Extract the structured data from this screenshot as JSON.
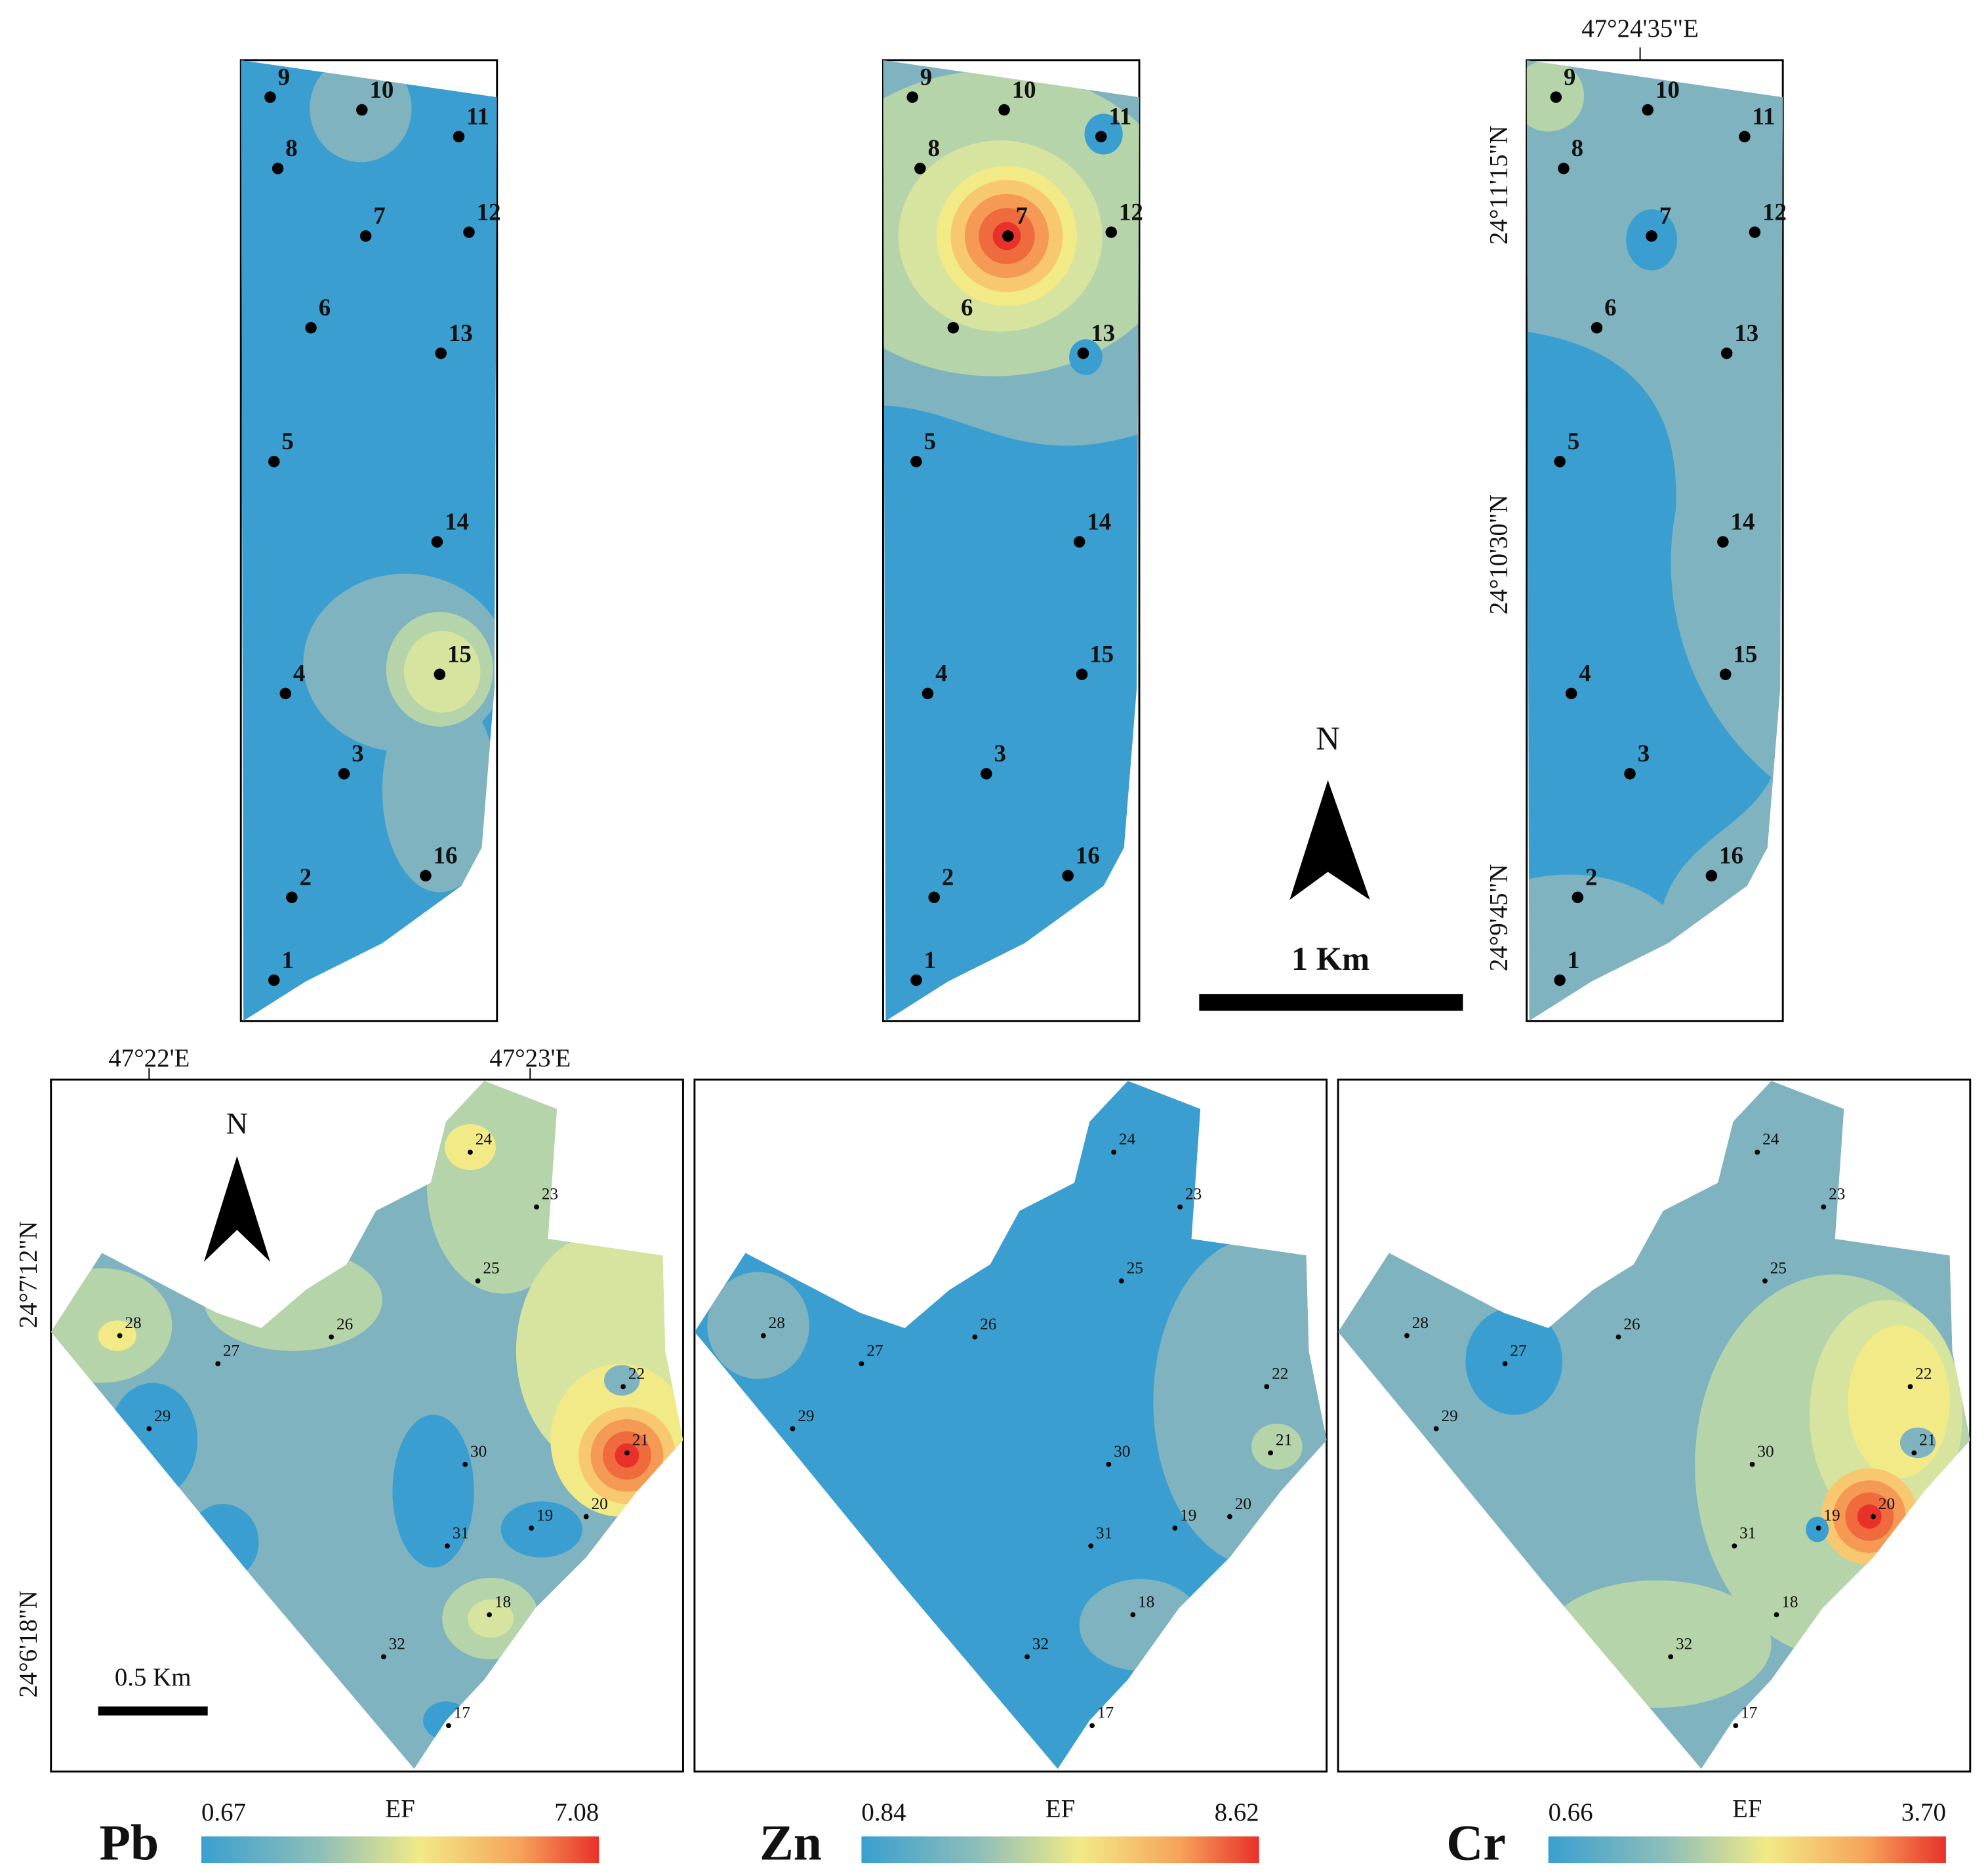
{
  "sites": {
    "north": [
      "1",
      "2",
      "3",
      "4",
      "5",
      "6",
      "7",
      "8",
      "9",
      "10",
      "11",
      "12",
      "13",
      "14",
      "15",
      "16"
    ],
    "south": [
      "17",
      "18",
      "19",
      "20",
      "21",
      "22",
      "23",
      "24",
      "25",
      "26",
      "27",
      "28",
      "29",
      "30",
      "31",
      "32"
    ]
  },
  "coordinates": {
    "top_longitude": "47°24'35\"E",
    "top_latitudes": [
      "24°11'15\"N",
      "24°10'30\"N",
      "24°9'45\"N"
    ],
    "bottom_longitudes": [
      "47°22'E",
      "47°23'E"
    ],
    "bottom_latitudes": [
      "24°7'12\"N",
      "24°6'18\"N"
    ]
  },
  "north_labels": [
    "N",
    "N"
  ],
  "scale_bars": [
    "1 Km",
    "0.5 Km"
  ],
  "legends": [
    {
      "element": "Pb",
      "min": "0.67",
      "title": "EF",
      "max": "7.08"
    },
    {
      "element": "Zn",
      "min": "0.84",
      "title": "EF",
      "max": "8.62"
    },
    {
      "element": "Cr",
      "min": "0.66",
      "title": "EF",
      "max": "3.70"
    }
  ]
}
